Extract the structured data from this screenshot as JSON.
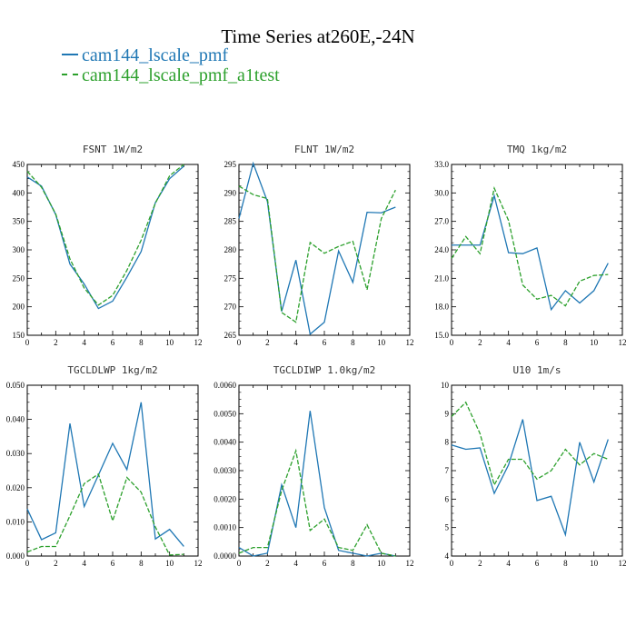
{
  "title": "Time Series at260E,-24N",
  "legend": [
    {
      "name": "cam144_lscale_pmf",
      "color": "#1f77b4"
    },
    {
      "name": "cam144_lscale_pmf_a1test",
      "color": "#2ca02c"
    }
  ],
  "chart_data": [
    {
      "type": "line",
      "title": "FSNT  1W/m2",
      "xlim": [
        0,
        12
      ],
      "ylim": [
        150,
        450
      ],
      "xticks": [
        "0",
        "2",
        "4",
        "6",
        "8",
        "10",
        "12"
      ],
      "yticks": [
        "150",
        "200",
        "250",
        "300",
        "350",
        "400",
        "450"
      ],
      "x": [
        0,
        1,
        2,
        3,
        4,
        5,
        6,
        7,
        8,
        9,
        10,
        11
      ],
      "series": [
        {
          "name": "cam144_lscale_pmf",
          "values": [
            428,
            412,
            362,
            275,
            240,
            197,
            210,
            252,
            297,
            383,
            425,
            447
          ]
        },
        {
          "name": "cam144_lscale_pmf_a1test",
          "values": [
            438,
            410,
            363,
            284,
            233,
            203,
            220,
            264,
            317,
            382,
            430,
            450
          ]
        }
      ]
    },
    {
      "type": "line",
      "title": "FLNT  1W/m2",
      "xlim": [
        0,
        12
      ],
      "ylim": [
        265,
        295
      ],
      "xticks": [
        "0",
        "2",
        "4",
        "6",
        "8",
        "10",
        "12"
      ],
      "yticks": [
        "265",
        "270",
        "275",
        "280",
        "285",
        "290",
        "295"
      ],
      "x": [
        0,
        1,
        2,
        3,
        4,
        5,
        6,
        7,
        8,
        9,
        10,
        11
      ],
      "series": [
        {
          "name": "cam144_lscale_pmf",
          "values": [
            285.5,
            295.2,
            288.5,
            269.2,
            278.2,
            265.2,
            267.3,
            279.8,
            274.3,
            286.6,
            286.5,
            287.5
          ]
        },
        {
          "name": "cam144_lscale_pmf_a1test",
          "values": [
            291.2,
            289.7,
            289.0,
            269.0,
            267.3,
            281.3,
            279.4,
            280.6,
            281.5,
            273.0,
            285.5,
            290.5
          ]
        }
      ]
    },
    {
      "type": "line",
      "title": "TMQ  1kg/m2",
      "xlim": [
        0,
        12
      ],
      "ylim": [
        15,
        33
      ],
      "xticks": [
        "0",
        "2",
        "4",
        "6",
        "8",
        "10",
        "12"
      ],
      "yticks": [
        "15.0",
        "18.0",
        "21.0",
        "24.0",
        "27.0",
        "30.0",
        "33.0"
      ],
      "x": [
        0,
        1,
        2,
        3,
        4,
        5,
        6,
        7,
        8,
        9,
        10,
        11
      ],
      "series": [
        {
          "name": "cam144_lscale_pmf",
          "values": [
            24.5,
            24.5,
            24.5,
            29.7,
            23.7,
            23.6,
            24.2,
            17.7,
            19.7,
            18.4,
            19.7,
            22.6
          ]
        },
        {
          "name": "cam144_lscale_pmf_a1test",
          "values": [
            23.1,
            25.4,
            23.6,
            30.5,
            27.1,
            20.3,
            18.8,
            19.2,
            18.1,
            20.7,
            21.3,
            21.4
          ]
        }
      ]
    },
    {
      "type": "line",
      "title": "TGCLDLWP  1kg/m2",
      "xlim": [
        0,
        12
      ],
      "ylim": [
        0,
        0.05
      ],
      "xticks": [
        "0",
        "2",
        "4",
        "6",
        "8",
        "10",
        "12"
      ],
      "yticks": [
        "0.000",
        "0.010",
        "0.020",
        "0.030",
        "0.040",
        "0.050"
      ],
      "x": [
        0,
        1,
        2,
        3,
        4,
        5,
        6,
        7,
        8,
        9,
        10,
        11
      ],
      "series": [
        {
          "name": "cam144_lscale_pmf",
          "values": [
            0.0138,
            0.0048,
            0.0068,
            0.0388,
            0.0145,
            0.0237,
            0.033,
            0.0253,
            0.045,
            0.005,
            0.0078,
            0.0028
          ]
        },
        {
          "name": "cam144_lscale_pmf_a1test",
          "values": [
            0.0012,
            0.0028,
            0.0028,
            0.0118,
            0.0212,
            0.024,
            0.0103,
            0.023,
            0.0187,
            0.0085,
            0.0003,
            0.0005
          ]
        }
      ]
    },
    {
      "type": "line",
      "title": "TGCLDIWP  1.0kg/m2",
      "xlim": [
        0,
        12
      ],
      "ylim": [
        0,
        0.006
      ],
      "xticks": [
        "0",
        "2",
        "4",
        "6",
        "8",
        "10",
        "12"
      ],
      "yticks": [
        "0.0000",
        "0.0010",
        "0.0020",
        "0.0030",
        "0.0040",
        "0.0050",
        "0.0060"
      ],
      "x": [
        0,
        1,
        2,
        3,
        4,
        5,
        6,
        7,
        8,
        9,
        10,
        11
      ],
      "series": [
        {
          "name": "cam144_lscale_pmf",
          "values": [
            0.0003,
            0.0,
            0.0001,
            0.0025,
            0.001,
            0.0051,
            0.0017,
            0.0002,
            0.0001,
            0.0,
            0.0001,
            0.0
          ]
        },
        {
          "name": "cam144_lscale_pmf_a1test",
          "values": [
            0.0001,
            0.0003,
            0.0003,
            0.0023,
            0.0037,
            0.0009,
            0.0013,
            0.0003,
            0.0002,
            0.0011,
            0.0001,
            0.0
          ]
        }
      ]
    },
    {
      "type": "line",
      "title": "U10  1m/s",
      "xlim": [
        0,
        12
      ],
      "ylim": [
        4,
        10
      ],
      "xticks": [
        "0",
        "2",
        "4",
        "6",
        "8",
        "10",
        "12"
      ],
      "yticks": [
        "4",
        "5",
        "6",
        "7",
        "8",
        "9",
        "10"
      ],
      "x": [
        0,
        1,
        2,
        3,
        4,
        5,
        6,
        7,
        8,
        9,
        10,
        11
      ],
      "series": [
        {
          "name": "cam144_lscale_pmf",
          "values": [
            7.9,
            7.75,
            7.8,
            6.2,
            7.2,
            8.8,
            5.95,
            6.1,
            4.75,
            8.0,
            6.6,
            8.1
          ]
        },
        {
          "name": "cam144_lscale_pmf_a1test",
          "values": [
            8.9,
            9.4,
            8.3,
            6.5,
            7.4,
            7.4,
            6.7,
            7.0,
            7.75,
            7.2,
            7.6,
            7.4
          ]
        }
      ]
    }
  ]
}
